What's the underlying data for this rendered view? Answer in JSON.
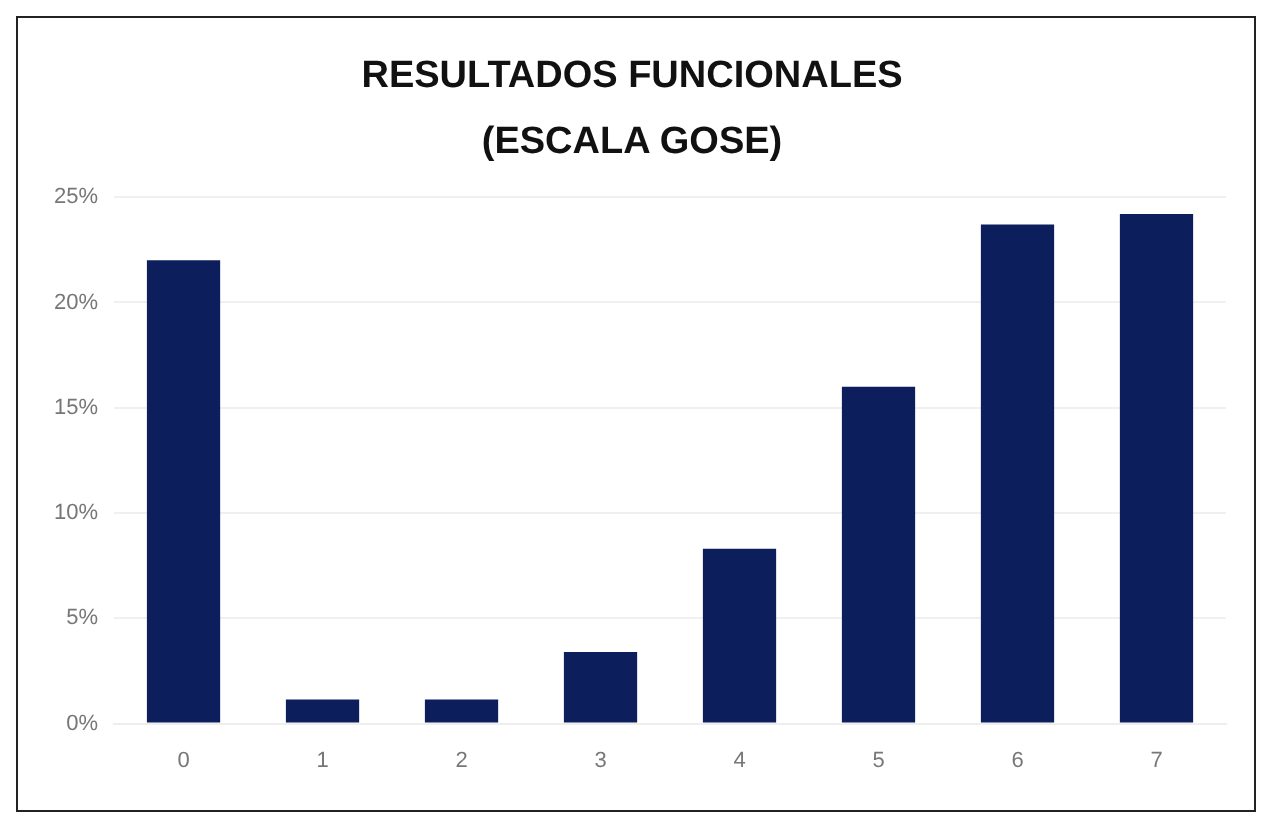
{
  "chart_data": {
    "type": "bar",
    "title": "RESULTADOS FUNCIONALES",
    "subtitle": "(ESCALA GOSE)",
    "categories": [
      "0",
      "1",
      "2",
      "3",
      "4",
      "5",
      "6",
      "7"
    ],
    "values": [
      22.0,
      1.15,
      1.15,
      3.4,
      8.3,
      16.0,
      23.7,
      24.2
    ],
    "color": "#0c1f5c",
    "ylim": [
      0,
      25
    ],
    "yticks": [
      {
        "value": 0,
        "label": "0%"
      },
      {
        "value": 5,
        "label": "5%"
      },
      {
        "value": 10,
        "label": "10%"
      },
      {
        "value": 15,
        "label": "15%"
      },
      {
        "value": 20,
        "label": "20%"
      },
      {
        "value": 25,
        "label": "25%"
      }
    ],
    "grid": "y",
    "legend": false
  }
}
